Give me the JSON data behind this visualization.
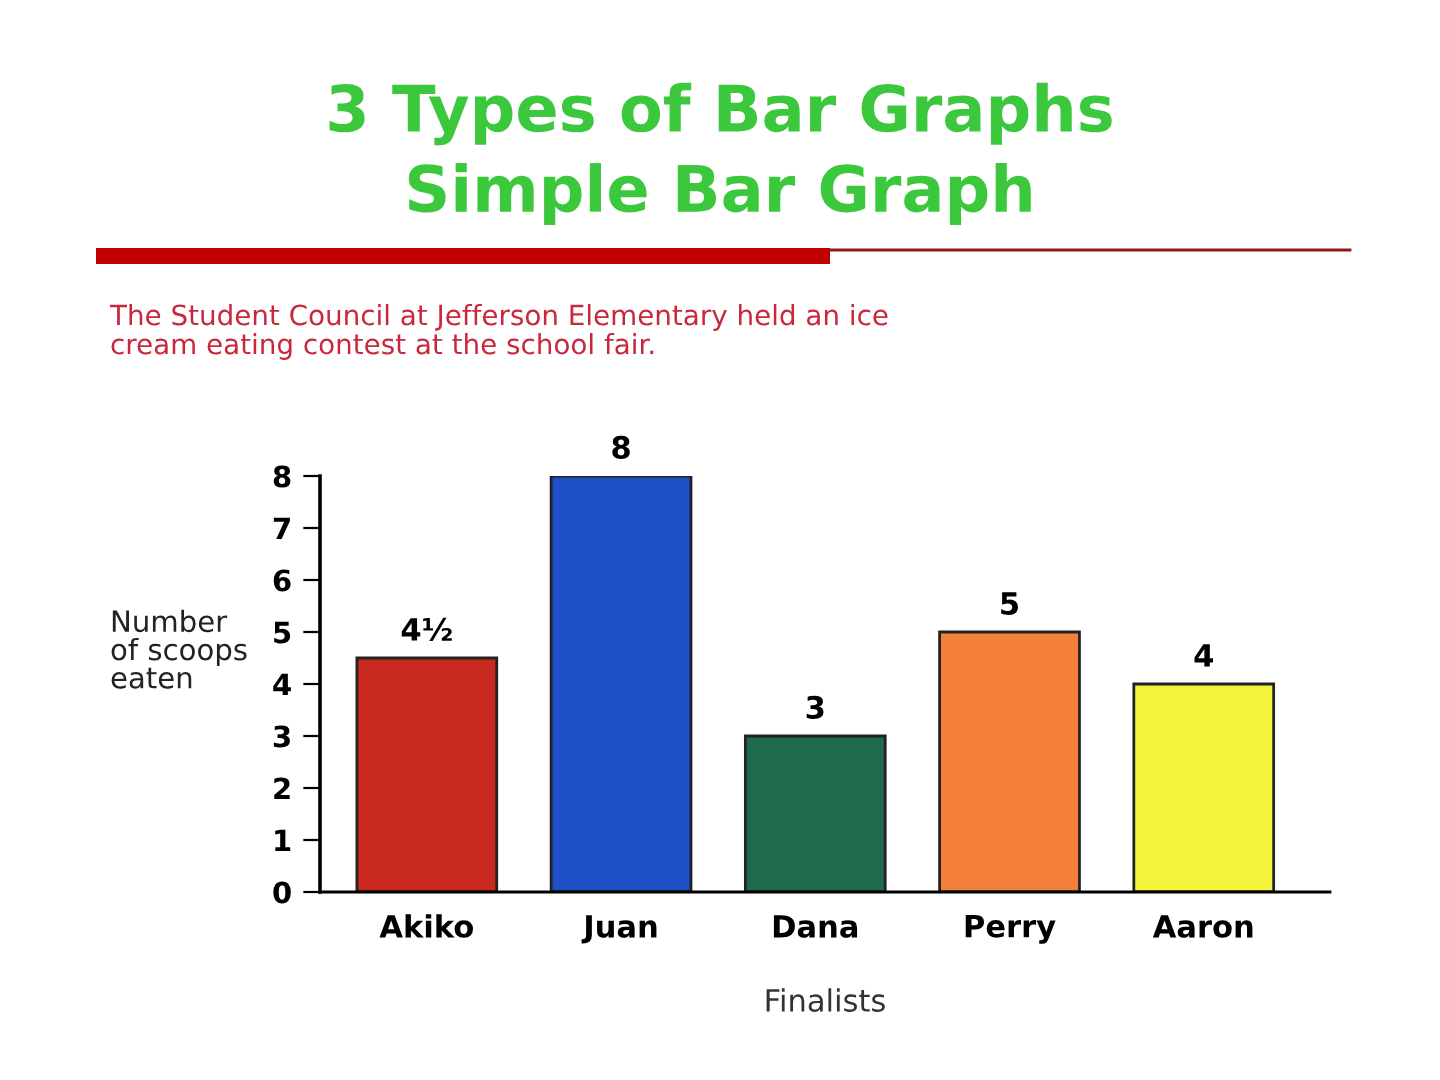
{
  "chart_data": {
    "type": "bar",
    "title": "3 Types of Bar Graphs",
    "subtitle": "Simple Bar Graph",
    "annotations": [
      "The Student Council at Jefferson Elementary held an ice cream eating contest at the school fair."
    ],
    "xlabel": "Finalists",
    "ylabel": "Number of scoops eaten",
    "categories": [
      "Akiko",
      "Juan",
      "Dana",
      "Perry",
      "Aaron"
    ],
    "values": [
      4.5,
      8,
      3,
      5,
      4
    ],
    "colors": [
      "#c8281e",
      "#1f4fc6",
      "#1d6b4c",
      "#f5803c",
      "#f4f43a"
    ],
    "value_labels": [
      "4½",
      "8",
      "3",
      "5",
      "4"
    ],
    "ylim": [
      0,
      8
    ],
    "yticks": [
      0,
      1,
      2,
      3,
      4,
      5,
      6,
      7,
      8
    ],
    "grid": false,
    "legend": false
  }
}
